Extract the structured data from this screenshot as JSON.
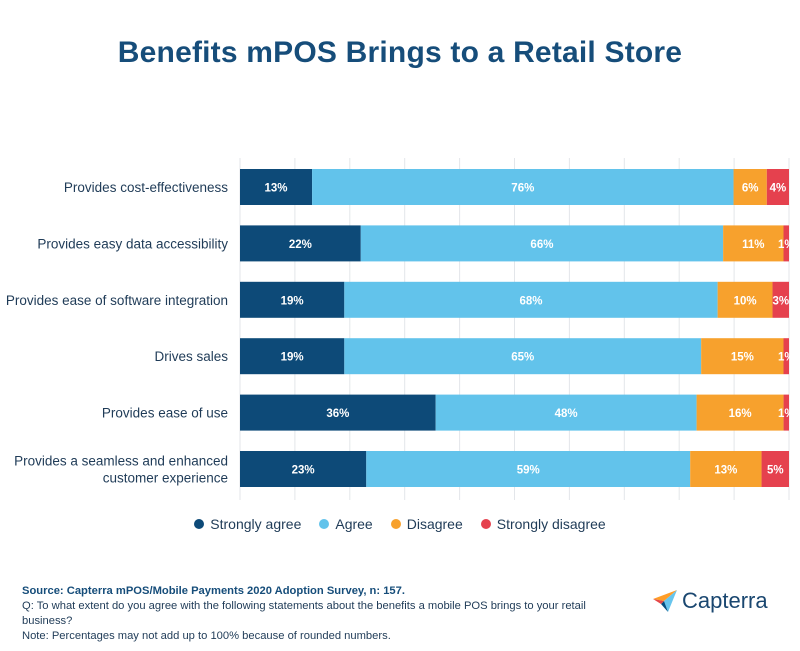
{
  "title": "Benefits mPOS Brings to a Retail Store",
  "colors": {
    "strongly_agree": "#0d4a78",
    "agree": "#62c3eb",
    "disagree": "#f7a12d",
    "strongly_disagree": "#e5414e",
    "title": "#164d7a"
  },
  "chart_data": {
    "type": "bar",
    "orientation": "horizontal",
    "stacked": true,
    "categories": [
      [
        "Provides cost-effectiveness"
      ],
      [
        "Provides easy data accessibility"
      ],
      [
        "Provides ease of software integration"
      ],
      [
        "Drives sales"
      ],
      [
        "Provides ease of use"
      ],
      [
        "Provides a seamless and enhanced",
        "customer experience"
      ]
    ],
    "series": [
      {
        "name": "Strongly agree",
        "values": [
          13,
          22,
          19,
          19,
          36,
          23
        ]
      },
      {
        "name": "Agree",
        "values": [
          76,
          66,
          68,
          65,
          48,
          59
        ]
      },
      {
        "name": "Disagree",
        "values": [
          6,
          11,
          10,
          15,
          16,
          13
        ]
      },
      {
        "name": "Strongly disagree",
        "values": [
          4,
          1,
          3,
          1,
          1,
          5
        ]
      }
    ],
    "value_suffix": "%",
    "xlim": [
      0,
      100
    ],
    "grid": true,
    "legend_position": "bottom"
  },
  "legend": [
    {
      "label": "Strongly agree",
      "color": "#0d4a78"
    },
    {
      "label": "Agree",
      "color": "#62c3eb"
    },
    {
      "label": "Disagree",
      "color": "#f7a12d"
    },
    {
      "label": "Strongly disagree",
      "color": "#e5414e"
    }
  ],
  "footer": {
    "source": "Source: Capterra mPOS/Mobile Payments 2020 Adoption Survey, n: 157.",
    "question": "Q: To what extent do you agree with the following statements about the benefits a mobile POS brings to your retail business?",
    "note": "Note: Percentages may not add up to 100% because of rounded numbers."
  },
  "logo": {
    "text": "Capterra"
  }
}
